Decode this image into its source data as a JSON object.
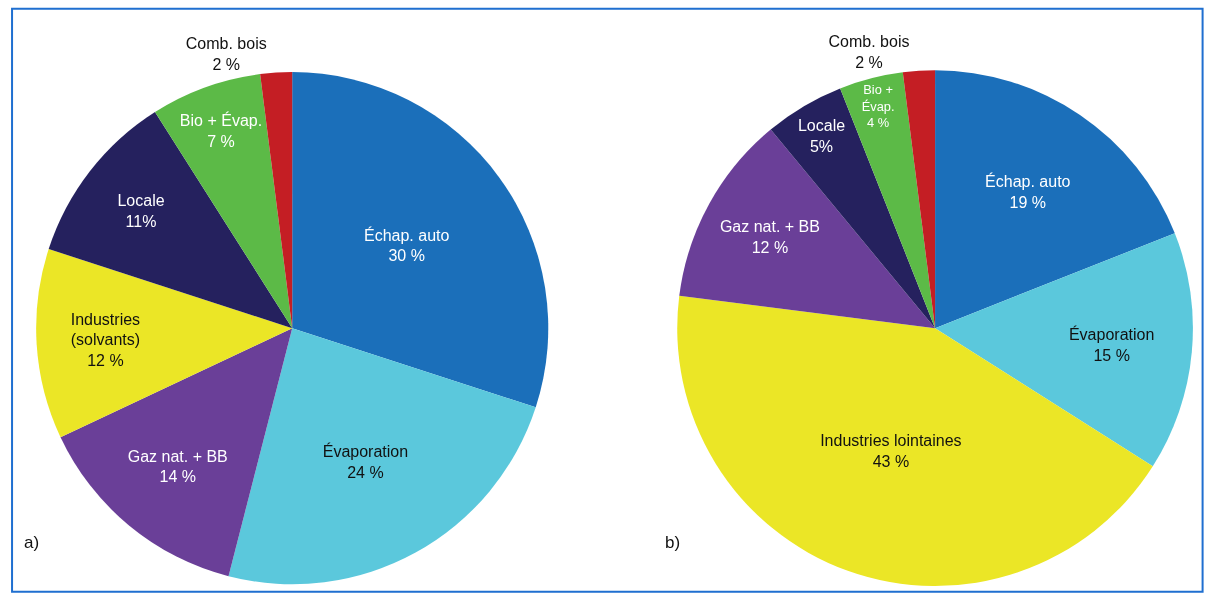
{
  "chart_data": [
    {
      "type": "pie",
      "categories": [
        "Échap. auto",
        "Évaporation",
        "Gaz nat. + BB",
        "Industries\n(solvants)",
        "Locale",
        "Bio + Évap.",
        "Comb. bois"
      ],
      "values": [
        30,
        24,
        14,
        12,
        11,
        7,
        2
      ],
      "value_labels": [
        "30 %",
        "24 %",
        "14 %",
        "12 %",
        "11%",
        "7 %",
        "2 %"
      ],
      "colors": [
        "#1b6fba",
        "#5bc8dc",
        "#6a3f98",
        "#ebe626",
        "#25215e",
        "#5cba47",
        "#c41e24"
      ],
      "annotations": [
        "a)"
      ]
    },
    {
      "type": "pie",
      "categories": [
        "Échap. auto",
        "Évaporation",
        "Industries lointaines",
        "Gaz nat. + BB",
        "Locale",
        "Bio +\nÉvap.",
        "Comb. bois"
      ],
      "values": [
        19,
        15,
        43,
        12,
        5,
        4,
        2
      ],
      "value_labels": [
        "19 %",
        "15 %",
        "43 %",
        "12 %",
        "5%",
        "4 %",
        "2 %"
      ],
      "colors": [
        "#1b6fba",
        "#5bc8dc",
        "#ebe626",
        "#6a3f98",
        "#25215e",
        "#5cba47",
        "#c41e24"
      ],
      "annotations": [
        "b)"
      ]
    }
  ]
}
